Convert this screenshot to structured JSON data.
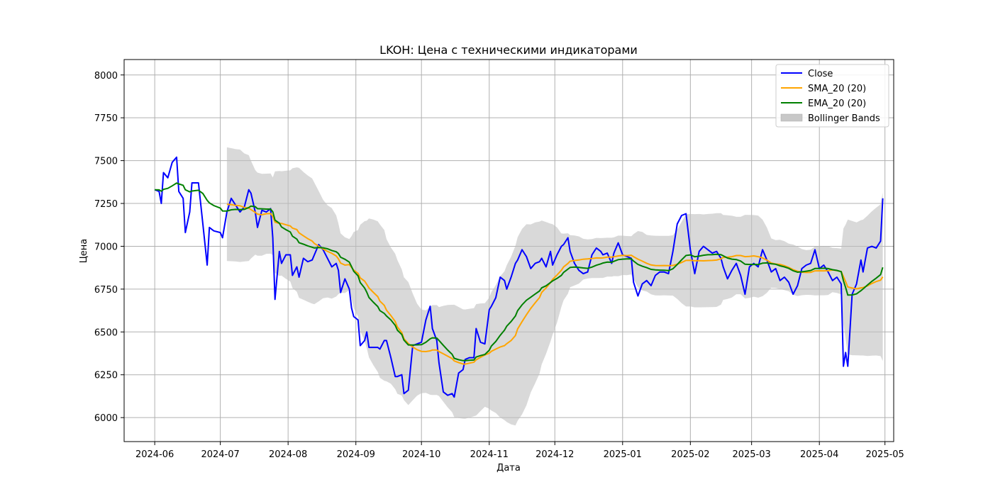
{
  "chart_data": {
    "type": "line",
    "title": "LKOH: Цена с техническими индикаторами",
    "xlabel": "Дата",
    "ylabel": "Цена",
    "ylim": [
      5860,
      8090
    ],
    "xlim": [
      "2024-05-18",
      "2025-05-05"
    ],
    "grid": true,
    "legend_position": "top-right",
    "x_ticks": [
      "2024-06",
      "2024-07",
      "2024-08",
      "2024-09",
      "2024-10",
      "2024-11",
      "2024-12",
      "2025-01",
      "2025-02",
      "2025-03",
      "2025-04",
      "2025-05"
    ],
    "y_ticks": [
      6000,
      6250,
      6500,
      6750,
      7000,
      7250,
      7500,
      7750,
      8000
    ],
    "legend": [
      {
        "label": "Close",
        "color": "#0000ff",
        "kind": "line"
      },
      {
        "label": "SMA_20 (20)",
        "color": "#ffa500",
        "kind": "line"
      },
      {
        "label": "EMA_20 (20)",
        "color": "#008000",
        "kind": "line"
      },
      {
        "label": "Bollinger Bands",
        "color": "#c8c8c8",
        "kind": "patch"
      }
    ],
    "series": [
      {
        "name": "Close",
        "color": "#0000ff",
        "points": [
          [
            "2024-06-01",
            7330
          ],
          [
            "2024-06-03",
            7320
          ],
          [
            "2024-06-04",
            7250
          ],
          [
            "2024-06-05",
            7430
          ],
          [
            "2024-06-07",
            7400
          ],
          [
            "2024-06-09",
            7490
          ],
          [
            "2024-06-11",
            7520
          ],
          [
            "2024-06-12",
            7320
          ],
          [
            "2024-06-14",
            7280
          ],
          [
            "2024-06-15",
            7080
          ],
          [
            "2024-06-17",
            7200
          ],
          [
            "2024-06-18",
            7370
          ],
          [
            "2024-06-21",
            7370
          ],
          [
            "2024-06-23",
            7130
          ],
          [
            "2024-06-25",
            6890
          ],
          [
            "2024-06-26",
            7110
          ],
          [
            "2024-06-28",
            7090
          ],
          [
            "2024-07-01",
            7080
          ],
          [
            "2024-07-02",
            7050
          ],
          [
            "2024-07-04",
            7200
          ],
          [
            "2024-07-06",
            7280
          ],
          [
            "2024-07-08",
            7240
          ],
          [
            "2024-07-10",
            7200
          ],
          [
            "2024-07-12",
            7230
          ],
          [
            "2024-07-14",
            7330
          ],
          [
            "2024-07-15",
            7310
          ],
          [
            "2024-07-17",
            7200
          ],
          [
            "2024-07-18",
            7110
          ],
          [
            "2024-07-20",
            7210
          ],
          [
            "2024-07-22",
            7200
          ],
          [
            "2024-07-24",
            7220
          ],
          [
            "2024-07-25",
            7050
          ],
          [
            "2024-07-26",
            6690
          ],
          [
            "2024-07-28",
            6970
          ],
          [
            "2024-07-29",
            6900
          ],
          [
            "2024-07-31",
            6950
          ],
          [
            "2024-08-02",
            6950
          ],
          [
            "2024-08-03",
            6830
          ],
          [
            "2024-08-05",
            6880
          ],
          [
            "2024-08-06",
            6820
          ],
          [
            "2024-08-08",
            6930
          ],
          [
            "2024-08-10",
            6910
          ],
          [
            "2024-08-12",
            6920
          ],
          [
            "2024-08-13",
            6950
          ],
          [
            "2024-08-15",
            7010
          ],
          [
            "2024-08-17",
            6980
          ],
          [
            "2024-08-19",
            6930
          ],
          [
            "2024-08-21",
            6880
          ],
          [
            "2024-08-23",
            6900
          ],
          [
            "2024-08-24",
            6860
          ],
          [
            "2024-08-25",
            6730
          ],
          [
            "2024-08-27",
            6810
          ],
          [
            "2024-08-29",
            6750
          ],
          [
            "2024-08-30",
            6640
          ],
          [
            "2024-08-31",
            6590
          ],
          [
            "2024-09-02",
            6570
          ],
          [
            "2024-09-03",
            6420
          ],
          [
            "2024-09-05",
            6450
          ],
          [
            "2024-09-06",
            6500
          ],
          [
            "2024-09-07",
            6410
          ],
          [
            "2024-09-09",
            6410
          ],
          [
            "2024-09-11",
            6410
          ],
          [
            "2024-09-12",
            6400
          ],
          [
            "2024-09-14",
            6450
          ],
          [
            "2024-09-15",
            6450
          ],
          [
            "2024-09-17",
            6350
          ],
          [
            "2024-09-19",
            6240
          ],
          [
            "2024-09-20",
            6240
          ],
          [
            "2024-09-22",
            6250
          ],
          [
            "2024-09-23",
            6140
          ],
          [
            "2024-09-25",
            6160
          ],
          [
            "2024-09-27",
            6420
          ],
          [
            "2024-09-29",
            6430
          ],
          [
            "2024-10-01",
            6440
          ],
          [
            "2024-10-03",
            6570
          ],
          [
            "2024-10-05",
            6650
          ],
          [
            "2024-10-06",
            6520
          ],
          [
            "2024-10-08",
            6450
          ],
          [
            "2024-10-09",
            6320
          ],
          [
            "2024-10-11",
            6150
          ],
          [
            "2024-10-13",
            6130
          ],
          [
            "2024-10-15",
            6140
          ],
          [
            "2024-10-16",
            6120
          ],
          [
            "2024-10-18",
            6260
          ],
          [
            "2024-10-20",
            6280
          ],
          [
            "2024-10-21",
            6340
          ],
          [
            "2024-10-23",
            6350
          ],
          [
            "2024-10-25",
            6350
          ],
          [
            "2024-10-26",
            6520
          ],
          [
            "2024-10-28",
            6440
          ],
          [
            "2024-10-30",
            6430
          ],
          [
            "2024-11-01",
            6630
          ],
          [
            "2024-11-02",
            6650
          ],
          [
            "2024-11-04",
            6700
          ],
          [
            "2024-11-06",
            6820
          ],
          [
            "2024-11-08",
            6800
          ],
          [
            "2024-11-09",
            6750
          ],
          [
            "2024-11-11",
            6820
          ],
          [
            "2024-11-13",
            6900
          ],
          [
            "2024-11-14",
            6920
          ],
          [
            "2024-11-16",
            6980
          ],
          [
            "2024-11-18",
            6940
          ],
          [
            "2024-11-20",
            6870
          ],
          [
            "2024-11-22",
            6900
          ],
          [
            "2024-11-24",
            6910
          ],
          [
            "2024-11-25",
            6930
          ],
          [
            "2024-11-27",
            6880
          ],
          [
            "2024-11-29",
            6970
          ],
          [
            "2024-11-30",
            6890
          ],
          [
            "2024-12-02",
            6950
          ],
          [
            "2024-12-04",
            7000
          ],
          [
            "2024-12-05",
            7010
          ],
          [
            "2024-12-07",
            7050
          ],
          [
            "2024-12-08",
            6970
          ],
          [
            "2024-12-10",
            6900
          ],
          [
            "2024-12-12",
            6860
          ],
          [
            "2024-12-14",
            6840
          ],
          [
            "2024-12-16",
            6850
          ],
          [
            "2024-12-18",
            6950
          ],
          [
            "2024-12-20",
            6990
          ],
          [
            "2024-12-22",
            6970
          ],
          [
            "2024-12-23",
            6950
          ],
          [
            "2024-12-25",
            6960
          ],
          [
            "2024-12-27",
            6900
          ],
          [
            "2024-12-28",
            6960
          ],
          [
            "2024-12-30",
            7020
          ],
          [
            "2025-01-01",
            6950
          ],
          [
            "2025-01-03",
            6940
          ],
          [
            "2025-01-05",
            6930
          ],
          [
            "2025-01-06",
            6790
          ],
          [
            "2025-01-08",
            6710
          ],
          [
            "2025-01-10",
            6780
          ],
          [
            "2025-01-12",
            6800
          ],
          [
            "2025-01-14",
            6770
          ],
          [
            "2025-01-16",
            6830
          ],
          [
            "2025-01-18",
            6850
          ],
          [
            "2025-01-20",
            6850
          ],
          [
            "2025-01-22",
            6840
          ],
          [
            "2025-01-24",
            6970
          ],
          [
            "2025-01-26",
            7130
          ],
          [
            "2025-01-28",
            7180
          ],
          [
            "2025-01-30",
            7190
          ],
          [
            "2025-02-01",
            6980
          ],
          [
            "2025-02-03",
            6840
          ],
          [
            "2025-02-05",
            6970
          ],
          [
            "2025-02-07",
            7000
          ],
          [
            "2025-02-09",
            6980
          ],
          [
            "2025-02-11",
            6960
          ],
          [
            "2025-02-13",
            6970
          ],
          [
            "2025-02-15",
            6930
          ],
          [
            "2025-02-16",
            6880
          ],
          [
            "2025-02-18",
            6810
          ],
          [
            "2025-02-20",
            6860
          ],
          [
            "2025-02-22",
            6900
          ],
          [
            "2025-02-24",
            6830
          ],
          [
            "2025-02-26",
            6720
          ],
          [
            "2025-02-28",
            6880
          ],
          [
            "2025-03-02",
            6900
          ],
          [
            "2025-03-04",
            6880
          ],
          [
            "2025-03-06",
            6980
          ],
          [
            "2025-03-08",
            6920
          ],
          [
            "2025-03-10",
            6850
          ],
          [
            "2025-03-12",
            6870
          ],
          [
            "2025-03-14",
            6800
          ],
          [
            "2025-03-16",
            6820
          ],
          [
            "2025-03-18",
            6790
          ],
          [
            "2025-03-20",
            6720
          ],
          [
            "2025-03-22",
            6770
          ],
          [
            "2025-03-24",
            6870
          ],
          [
            "2025-03-26",
            6890
          ],
          [
            "2025-03-28",
            6900
          ],
          [
            "2025-03-30",
            6980
          ],
          [
            "2025-04-01",
            6870
          ],
          [
            "2025-04-03",
            6890
          ],
          [
            "2025-04-05",
            6850
          ],
          [
            "2025-04-07",
            6800
          ],
          [
            "2025-04-09",
            6820
          ],
          [
            "2025-04-11",
            6780
          ],
          [
            "2025-04-12",
            6300
          ],
          [
            "2025-04-13",
            6380
          ],
          [
            "2025-04-14",
            6300
          ],
          [
            "2025-04-16",
            6720
          ],
          [
            "2025-04-18",
            6780
          ],
          [
            "2025-04-20",
            6920
          ],
          [
            "2025-04-21",
            6850
          ],
          [
            "2025-04-23",
            6990
          ],
          [
            "2025-04-25",
            7000
          ],
          [
            "2025-04-27",
            6990
          ],
          [
            "2025-04-29",
            7030
          ],
          [
            "2025-04-30",
            7280
          ]
        ]
      }
    ]
  }
}
